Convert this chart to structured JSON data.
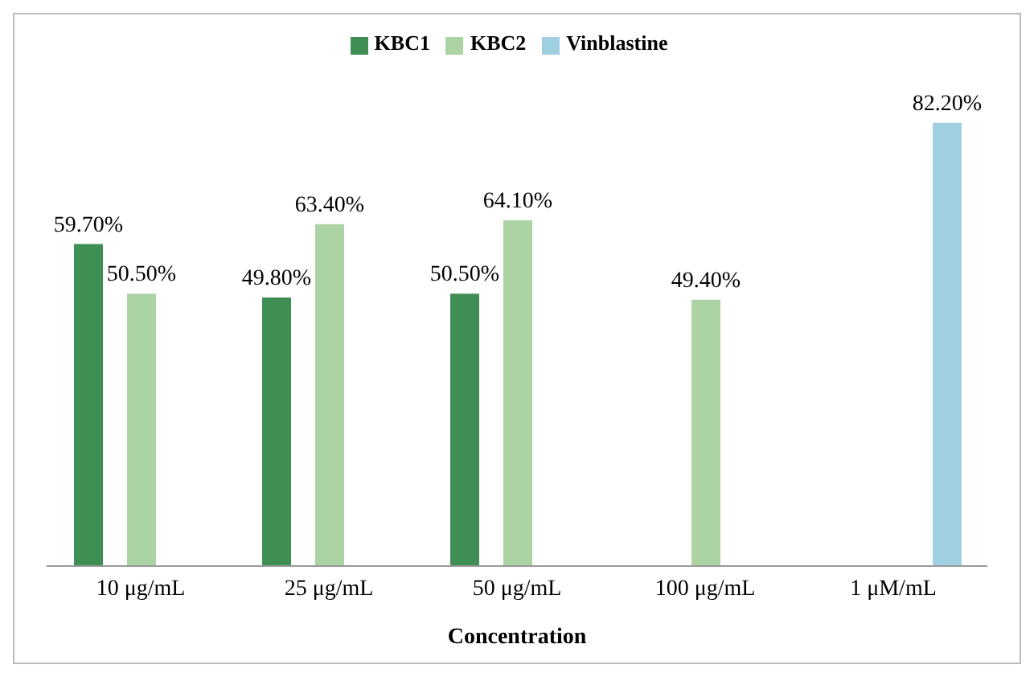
{
  "chart_data": {
    "type": "bar",
    "xlabel": "Concentration",
    "categories": [
      "10 μg/mL",
      "25 μg/mL",
      "50 μg/mL",
      "100 μg/mL",
      "1 μM/mL"
    ],
    "series": [
      {
        "name": "KBC1",
        "color": "#3f8f55",
        "values": [
          59.7,
          49.8,
          50.5,
          null,
          null
        ],
        "value_labels": [
          "59.70%",
          "49.80%",
          "50.50%",
          null,
          null
        ]
      },
      {
        "name": "KBC2",
        "color": "#abd3a4",
        "values": [
          50.5,
          63.4,
          64.1,
          49.4,
          null
        ],
        "value_labels": [
          "50.50%",
          "63.40%",
          "64.10%",
          "49.40%",
          null
        ]
      },
      {
        "name": "Vinblastine",
        "color": "#9fd0e2",
        "values": [
          null,
          null,
          null,
          null,
          82.2
        ],
        "value_labels": [
          null,
          null,
          null,
          null,
          "82.20%"
        ]
      }
    ],
    "legend": "top"
  }
}
